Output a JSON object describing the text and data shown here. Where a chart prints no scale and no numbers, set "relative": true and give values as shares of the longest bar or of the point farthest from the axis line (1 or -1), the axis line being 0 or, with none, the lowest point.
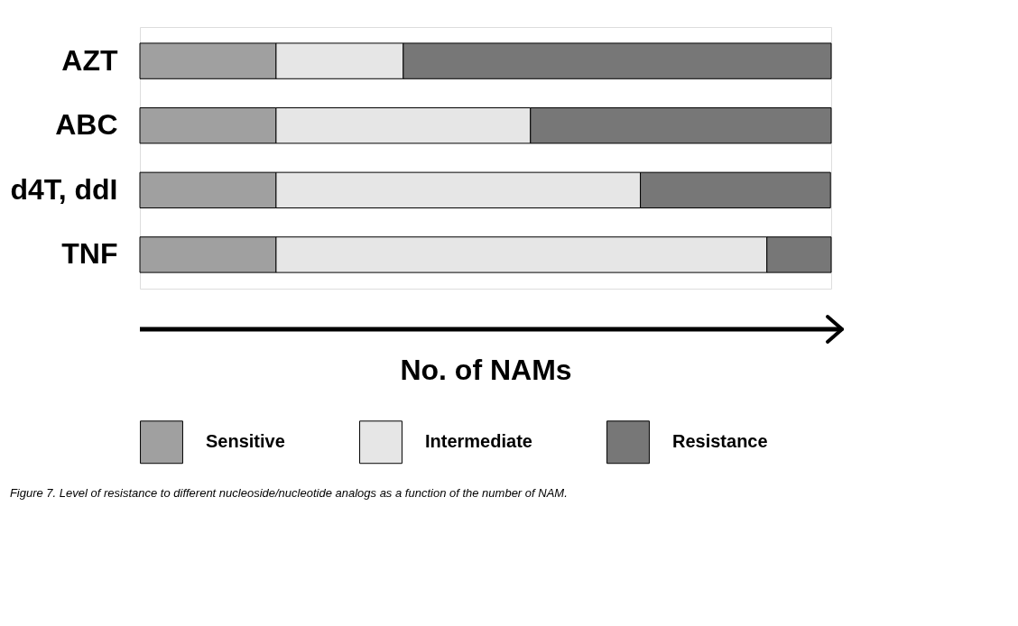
{
  "chart_data": {
    "type": "bar",
    "orientation": "horizontal",
    "stacked": true,
    "relative": true,
    "categories": [
      "AZT",
      "ABC",
      "d4T, ddI",
      "TNF"
    ],
    "series": [
      {
        "name": "Sensitive",
        "color": "#a0a0a0",
        "values": [
          0.197,
          0.197,
          0.197,
          0.197
        ]
      },
      {
        "name": "Intermediate",
        "color": "#e6e6e6",
        "values": [
          0.184,
          0.368,
          0.527,
          0.71
        ]
      },
      {
        "name": "Resistance",
        "color": "#777777",
        "values": [
          0.619,
          0.435,
          0.275,
          0.093
        ]
      }
    ],
    "xlabel": "No. of NAMs",
    "legend": "bottom",
    "grid": false,
    "annotations": [
      "Figure 7. Level of resistance to different nucleoside/nucleotide analogs as a function of the number of NAM."
    ]
  }
}
